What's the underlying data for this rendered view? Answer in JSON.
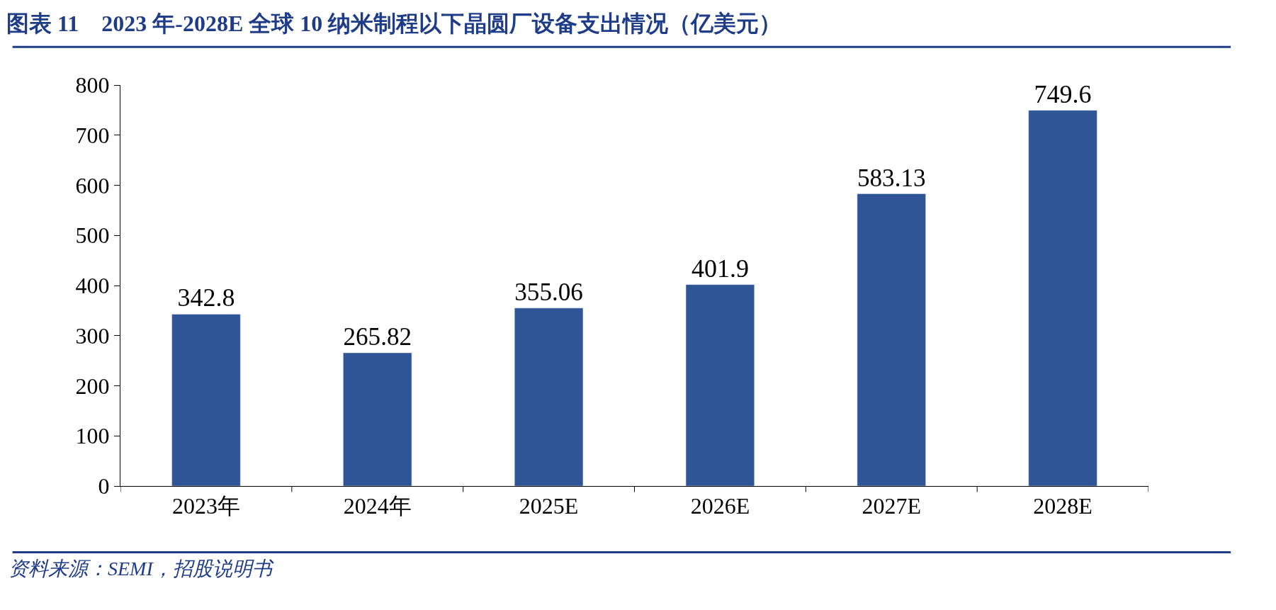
{
  "chart_data": {
    "type": "bar",
    "title": "图表 11　2023 年-2028E 全球 10 纳米制程以下晶圆厂设备支出情况（亿美元）",
    "categories": [
      "2023年",
      "2024年",
      "2025E",
      "2026E",
      "2027E",
      "2028E"
    ],
    "values": [
      342.8,
      265.82,
      355.06,
      401.9,
      583.13,
      749.6
    ],
    "color": "#2f5597",
    "ylim": [
      0,
      800
    ],
    "yticks": [
      0,
      100,
      200,
      300,
      400,
      500,
      600,
      700,
      800
    ],
    "data_labels": true,
    "annotations": [
      "资料来源：SEMI，招股说明书"
    ]
  }
}
